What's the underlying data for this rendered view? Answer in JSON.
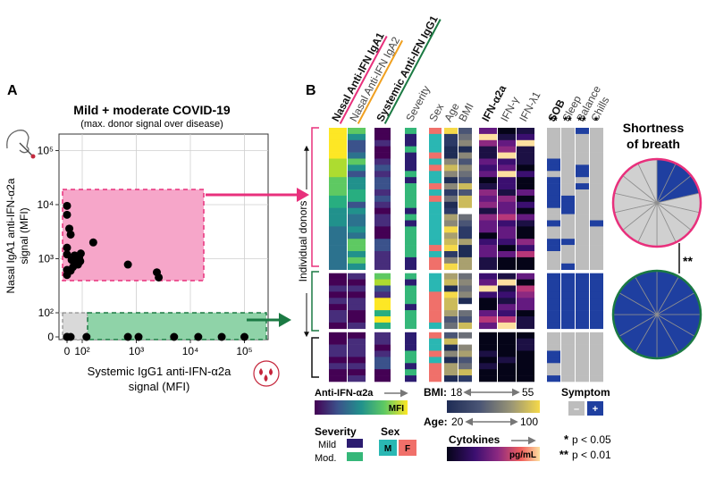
{
  "panel_a": {
    "label": "A",
    "title": "Mild + moderate COVID-19",
    "subtitle": "(max. donor signal over disease)",
    "y_axis_label_1": "Nasal IgA1 anti-IFN-α2a",
    "y_axis_label_2": "signal (MFI)",
    "x_axis_label_1": "Systemic IgG1 anti-IFN-α2a",
    "x_axis_label_2": "signal (MFI)",
    "y_ticks": [
      "0",
      "10²",
      "10³",
      "10⁴",
      "10⁵"
    ],
    "x_ticks": [
      "0",
      "10²",
      "10³",
      "10⁴",
      "10⁵"
    ],
    "nose_icon": "nasal-swab-icon",
    "blood_icon": "blood-drops-icon",
    "colors": {
      "pink": "#e8307c",
      "pink_fill": "#f6a6c9",
      "green": "#1b7a43",
      "green_fill": "#8fd3a8",
      "gray_fill": "#d9d9d9"
    }
  },
  "chart_data": {
    "type": "scatter",
    "title": "Mild + moderate COVID-19",
    "xlabel": "Systemic IgG1 anti-IFN-α2a signal (MFI)",
    "ylabel": "Nasal IgA1 anti-IFN-α2a signal (MFI)",
    "xscale": "symlog",
    "yscale": "symlog",
    "xlim": [
      0,
      100000
    ],
    "ylim": [
      0,
      100000
    ],
    "points": [
      {
        "x": 0,
        "y": 6500
      },
      {
        "x": 2,
        "y": 3600
      },
      {
        "x": 3,
        "y": 2800
      },
      {
        "x": 1,
        "y": 1600
      },
      {
        "x": 0,
        "y": 1200
      },
      {
        "x": 4,
        "y": 950
      },
      {
        "x": 0,
        "y": 620
      },
      {
        "x": 6,
        "y": 700
      },
      {
        "x": 10,
        "y": 1150
      },
      {
        "x": 14,
        "y": 850
      },
      {
        "x": 20,
        "y": 1000
      },
      {
        "x": 28,
        "y": 780
      },
      {
        "x": 40,
        "y": 1050
      },
      {
        "x": 55,
        "y": 900
      },
      {
        "x": 65,
        "y": 1250
      },
      {
        "x": 160,
        "y": 2000
      },
      {
        "x": 3,
        "y": 600
      },
      {
        "x": 1,
        "y": 500
      },
      {
        "x": 700,
        "y": 780
      },
      {
        "x": 2600,
        "y": 450
      },
      {
        "x": 2400,
        "y": 560
      },
      {
        "x": 0,
        "y": 9500
      },
      {
        "x": 0,
        "y": 0
      },
      {
        "x": 1,
        "y": 0
      },
      {
        "x": 3,
        "y": 0
      },
      {
        "x": 120,
        "y": 0
      },
      {
        "x": 700,
        "y": 0
      },
      {
        "x": 1100,
        "y": 0
      },
      {
        "x": 5000,
        "y": 0
      },
      {
        "x": 14000,
        "y": 0
      },
      {
        "x": 38000,
        "y": 0
      },
      {
        "x": 100000,
        "y": 0
      }
    ]
  },
  "panel_b": {
    "label": "B",
    "columns": [
      {
        "text": "Nasal Anti-IFN IgA1",
        "bold": true,
        "underline": "#e8307c"
      },
      {
        "text": "Nasal Anti-IFN IgA2",
        "bold": false,
        "underline": "#f0a020"
      },
      {
        "text": "Systemic Anti-IFN IgG1",
        "bold": true,
        "underline": "#1b7a43"
      },
      {
        "text": "Severity",
        "bold": false
      },
      {
        "text": "Sex",
        "bold": false
      },
      {
        "text": "Age",
        "bold": false
      },
      {
        "text": "BMI",
        "bold": false
      },
      {
        "text": "IFN-α2a",
        "bold": true
      },
      {
        "text": "IFN-γ",
        "bold": false
      },
      {
        "text": "IFN-λ1",
        "bold": false
      },
      {
        "text": "SOB",
        "bold": true
      },
      {
        "text": "Sleep",
        "bold": false
      },
      {
        "text": "Balance",
        "bold": false
      },
      {
        "text": "Chills",
        "bold": false
      }
    ],
    "symptom_stars": [
      "**",
      "**",
      "**",
      "*"
    ],
    "row_axis_label": "Individual donors",
    "legend": {
      "anti_ifn_title": "Anti-IFN-α2a",
      "mfi": "MFI",
      "severity_title": "Severity",
      "severity_mild": "Mild",
      "severity_mod": "Mod.",
      "sex_title": "Sex",
      "sex_m": "M",
      "sex_f": "F",
      "bmi_label": "BMI:",
      "bmi_min": "18",
      "bmi_max": "55",
      "age_label": "Age:",
      "age_min": "20",
      "age_max": "100",
      "cytokines_title": "Cytokines",
      "pgml": "pg/mL",
      "symptom_title": "Symptom",
      "symptom_neg": "–",
      "symptom_pos": "+",
      "sig1_stars": "*",
      "sig1_text": "p < 0.05",
      "sig2_stars": "**",
      "sig2_text": "p < 0.01"
    },
    "sob": {
      "title_1": "Shortness",
      "title_2": "of breath",
      "stars": "**",
      "top_pie": {
        "slices": 14,
        "positive": 3,
        "ring": "#e8307c"
      },
      "bottom_pie": {
        "slices": 12,
        "positive": 12,
        "ring": "#1b7a43"
      }
    },
    "colors": {
      "mild": "#2c1c70",
      "mod": "#35b779",
      "male": "#2ab7b3",
      "female": "#f0706a",
      "sym_neg": "#bdbdbd",
      "sym_pos": "#1f3fa0"
    }
  }
}
